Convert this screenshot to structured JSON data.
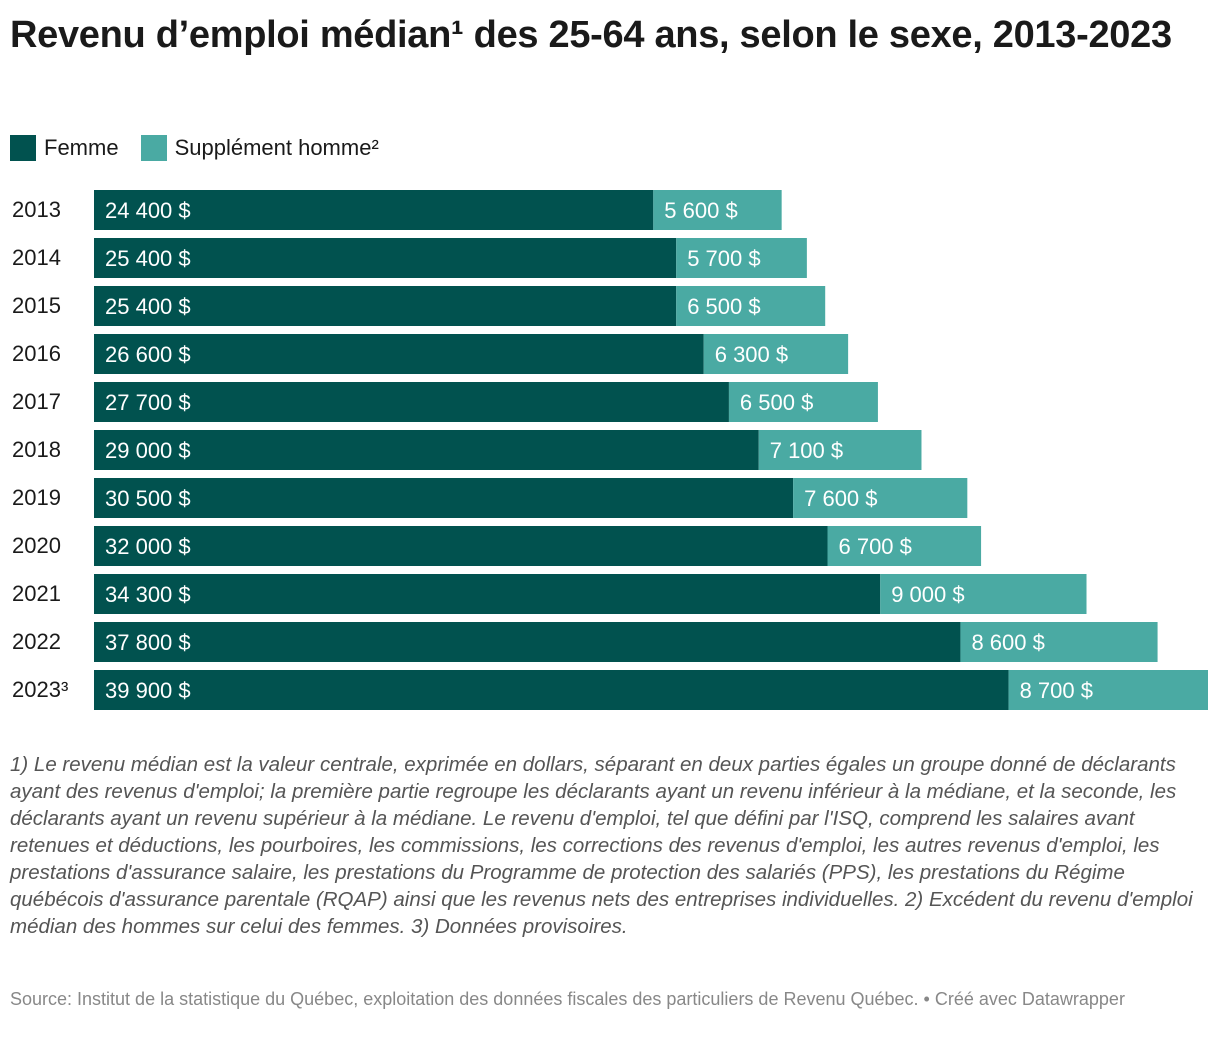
{
  "chart_data": {
    "type": "bar",
    "orientation": "horizontal",
    "stacked": true,
    "title": "Revenu d’emploi médian¹ des 25-64 ans, selon le sexe, 2013-2023",
    "categories": [
      "2013",
      "2014",
      "2015",
      "2016",
      "2017",
      "2018",
      "2019",
      "2020",
      "2021",
      "2022",
      "2023³"
    ],
    "series": [
      {
        "name": "Femme",
        "color": "#01524f",
        "values": [
          24400,
          25400,
          25400,
          26600,
          27700,
          29000,
          30500,
          32000,
          34300,
          37800,
          39900
        ],
        "labels": [
          "24 400 $",
          "25 400 $",
          "25 400 $",
          "26 600 $",
          "27 700 $",
          "29 000 $",
          "30 500 $",
          "32 000 $",
          "34 300 $",
          "37 800 $",
          "39 900 $"
        ]
      },
      {
        "name": "Supplément homme²",
        "color": "#4aaaa3",
        "values": [
          5600,
          5700,
          6500,
          6300,
          6500,
          7100,
          7600,
          6700,
          9000,
          8600,
          8700
        ],
        "labels": [
          "5 600 $",
          "5 700 $",
          "6 500 $",
          "6 300 $",
          "6 500 $",
          "7 100 $",
          "7 600 $",
          "6 700 $",
          "9 000 $",
          "8 600 $",
          "8 700 $"
        ]
      }
    ],
    "xlim": [
      0,
      48600
    ],
    "legend_position": "top-left"
  },
  "notes": "1) Le revenu médian est la valeur centrale, exprimée en dollars, séparant en deux parties égales un groupe donné de déclarants ayant des revenus d'emploi; la première partie regroupe les déclarants ayant un revenu inférieur à la médiane, et la seconde, les déclarants ayant un revenu supérieur à la médiane. Le revenu d'emploi, tel que défini par l'ISQ, comprend les salaires avant retenues et déductions, les pourboires, les commissions, les corrections des revenus d'emploi, les autres revenus d'emploi, les prestations d'assurance salaire, les prestations du Programme de protection des salariés (PPS), les prestations du Régime québécois d'assurance parentale (RQAP) ainsi que les revenus nets des entreprises individuelles. 2) Excédent du revenu d'emploi médian des hommes sur celui des femmes. 3) Données provisoires.",
  "source": "Source: Institut de la statistique du Québec, exploitation des données fiscales des particuliers de Revenu Québec. • Créé avec Datawrapper"
}
